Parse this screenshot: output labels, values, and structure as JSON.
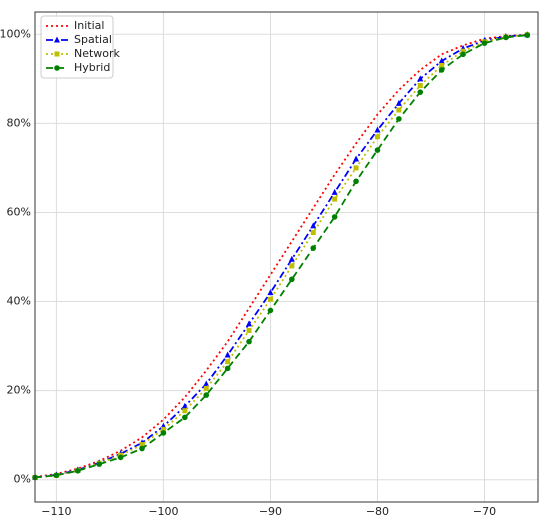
{
  "chart_data": {
    "type": "line",
    "x": [
      -112,
      -110,
      -108,
      -106,
      -104,
      -102,
      -100,
      -98,
      -96,
      -94,
      -92,
      -90,
      -88,
      -86,
      -84,
      -82,
      -80,
      -78,
      -76,
      -74,
      -72,
      -70,
      -68,
      -66
    ],
    "series": [
      {
        "name": "Initial",
        "color": "#ff0000",
        "style": "dotted",
        "marker": "none",
        "values": [
          0.6,
          1.3,
          2.5,
          4.2,
          6.5,
          9.5,
          13.5,
          18.5,
          24.5,
          31,
          38.5,
          46,
          53.5,
          61,
          68.5,
          75.5,
          82,
          87.5,
          92,
          95.5,
          97.5,
          99,
          99.6,
          99.9
        ]
      },
      {
        "name": "Spatial",
        "color": "#0000ff",
        "style": "dashdot",
        "marker": "triangle",
        "values": [
          0.5,
          1.1,
          2.2,
          3.8,
          5.8,
          8.3,
          12,
          16.5,
          21.5,
          28,
          35,
          42,
          49.5,
          57,
          64.5,
          72,
          78.5,
          84.5,
          90,
          94,
          96.8,
          98.6,
          99.5,
          99.9
        ]
      },
      {
        "name": "Network",
        "color": "#bfbf00",
        "style": "dotted",
        "marker": "square",
        "values": [
          0.5,
          1,
          2.1,
          3.7,
          5.5,
          7.9,
          11.3,
          15.5,
          20.5,
          26.5,
          33.5,
          40.5,
          48,
          55.5,
          63,
          70,
          77,
          83,
          88.5,
          93,
          96.2,
          98.3,
          99.4,
          99.9
        ]
      },
      {
        "name": "Hybrid",
        "color": "#008000",
        "style": "dashed",
        "marker": "circle",
        "values": [
          0.5,
          1,
          2,
          3.5,
          5,
          7,
          10.5,
          14,
          19,
          25,
          31,
          38,
          45,
          52,
          59,
          67,
          74,
          81,
          87,
          92,
          95.5,
          98,
          99.3,
          99.8
        ]
      }
    ],
    "xlim": [
      -112,
      -65
    ],
    "xticks": [
      {
        "value": -110,
        "label": "−110"
      },
      {
        "value": -100,
        "label": "−100"
      },
      {
        "value": -90,
        "label": "−90"
      },
      {
        "value": -80,
        "label": "−80"
      },
      {
        "value": -70,
        "label": "−70"
      }
    ],
    "ylim": [
      -5,
      105
    ],
    "yticks": [
      {
        "value": 0,
        "label": "0%"
      },
      {
        "value": 20,
        "label": "20%"
      },
      {
        "value": 40,
        "label": "40%"
      },
      {
        "value": 60,
        "label": "60%"
      },
      {
        "value": 80,
        "label": "80%"
      },
      {
        "value": 100,
        "label": "100%"
      }
    ],
    "grid": true,
    "legend": "upper-left"
  }
}
